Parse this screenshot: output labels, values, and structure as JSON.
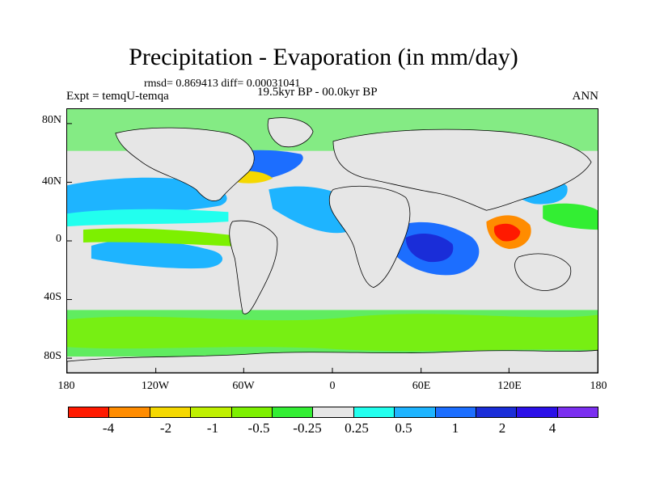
{
  "title": "Precipitation - Evaporation (in mm/day)",
  "stats": "rmsd= 0.869413  diff= 0.00031041",
  "experiment": "Expt = temqU-temqa",
  "period": "19.5kyr BP - 00.0kyr BP",
  "season": "ANN",
  "y_ticks": [
    "80N",
    "40N",
    "0",
    "40S",
    "80S"
  ],
  "x_ticks": [
    "180",
    "120W",
    "60W",
    "0",
    "60E",
    "120E",
    "180"
  ],
  "colorbar": {
    "colors": [
      "#ff1a00",
      "#ff8c00",
      "#f5d800",
      "#bff000",
      "#7df000",
      "#33ee33",
      "#e6e6e6",
      "#22ffee",
      "#1eb4ff",
      "#1c6eff",
      "#1a2dd8",
      "#2b10e8",
      "#7b2ff0"
    ],
    "labels": [
      "-4",
      "-2",
      "-1",
      "-0.5",
      "-0.25",
      "0.25",
      "0.5",
      "1",
      "2",
      "4"
    ]
  },
  "map": {
    "background": "#e6e6e6",
    "coastline_color": "#000000"
  }
}
